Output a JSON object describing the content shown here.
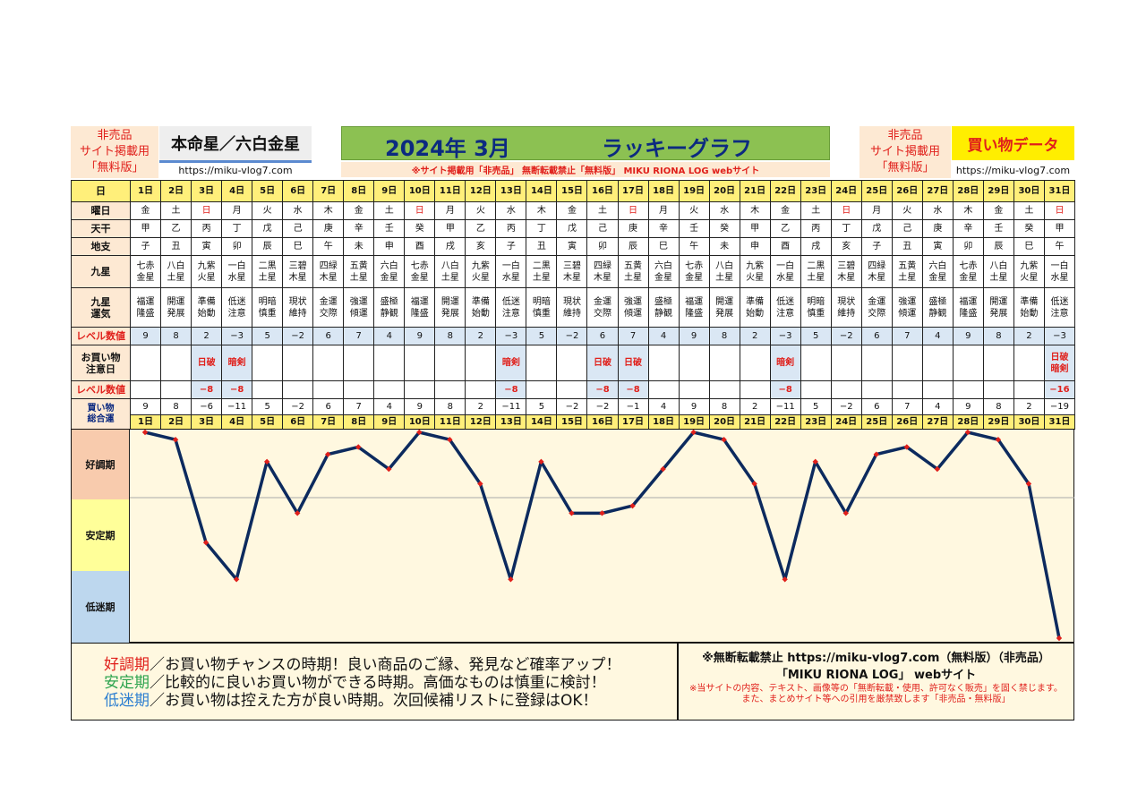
{
  "header": {
    "notice_left": [
      "非売品",
      "サイト掲載用",
      "「無料版」"
    ],
    "title": "本命星／六白金星",
    "url": "https://miku-vlog7.com",
    "banner_date": "2024年 3月",
    "banner_title": "ラッキーグラフ",
    "strip_text": "※サイト掲載用「非売品」 無断転載禁止「無料版」 MIKU RIONA LOG webサイト",
    "notice_right": [
      "非売品",
      "サイト掲載用",
      "「無料版」"
    ],
    "shop_label": "買い物データ",
    "url_right": "https://miku-vlog7.com"
  },
  "row_labels": {
    "day": "日",
    "weekday": "曜日",
    "tenkan": "天干",
    "chishi": "地支",
    "kyusei": "九星",
    "unki": [
      "九星",
      "運気"
    ],
    "level": "レベル数値",
    "attention": [
      "お買い物",
      "注意日"
    ],
    "level2": "レベル数値",
    "total": [
      "買い物",
      "総合運"
    ]
  },
  "days": [
    "1日",
    "2日",
    "3日",
    "4日",
    "5日",
    "6日",
    "7日",
    "8日",
    "9日",
    "10日",
    "11日",
    "12日",
    "13日",
    "14日",
    "15日",
    "16日",
    "17日",
    "18日",
    "19日",
    "20日",
    "21日",
    "22日",
    "23日",
    "24日",
    "25日",
    "26日",
    "27日",
    "28日",
    "29日",
    "30日",
    "31日"
  ],
  "weekdays": [
    "金",
    "土",
    "日",
    "月",
    "火",
    "水",
    "木",
    "金",
    "土",
    "日",
    "月",
    "火",
    "水",
    "木",
    "金",
    "土",
    "日",
    "月",
    "火",
    "水",
    "木",
    "金",
    "土",
    "日",
    "月",
    "火",
    "水",
    "木",
    "金",
    "土",
    "日"
  ],
  "tenkan": [
    "甲",
    "乙",
    "丙",
    "丁",
    "戊",
    "己",
    "庚",
    "辛",
    "壬",
    "癸",
    "甲",
    "乙",
    "丙",
    "丁",
    "戊",
    "己",
    "庚",
    "辛",
    "壬",
    "癸",
    "甲",
    "乙",
    "丙",
    "丁",
    "戊",
    "己",
    "庚",
    "辛",
    "壬",
    "癸",
    "甲"
  ],
  "chishi": [
    "子",
    "丑",
    "寅",
    "卯",
    "辰",
    "巳",
    "午",
    "未",
    "申",
    "酉",
    "戌",
    "亥",
    "子",
    "丑",
    "寅",
    "卯",
    "辰",
    "巳",
    "午",
    "未",
    "申",
    "酉",
    "戌",
    "亥",
    "子",
    "丑",
    "寅",
    "卯",
    "辰",
    "巳",
    "午"
  ],
  "kyusei": [
    [
      "七赤",
      "金星"
    ],
    [
      "八白",
      "土星"
    ],
    [
      "九紫",
      "火星"
    ],
    [
      "一白",
      "水星"
    ],
    [
      "二黒",
      "土星"
    ],
    [
      "三碧",
      "木星"
    ],
    [
      "四緑",
      "木星"
    ],
    [
      "五黄",
      "土星"
    ],
    [
      "六白",
      "金星"
    ],
    [
      "七赤",
      "金星"
    ],
    [
      "八白",
      "土星"
    ],
    [
      "九紫",
      "火星"
    ],
    [
      "一白",
      "水星"
    ],
    [
      "二黒",
      "土星"
    ],
    [
      "三碧",
      "木星"
    ],
    [
      "四緑",
      "木星"
    ],
    [
      "五黄",
      "土星"
    ],
    [
      "六白",
      "金星"
    ],
    [
      "七赤",
      "金星"
    ],
    [
      "八白",
      "土星"
    ],
    [
      "九紫",
      "火星"
    ],
    [
      "一白",
      "水星"
    ],
    [
      "二黒",
      "土星"
    ],
    [
      "三碧",
      "木星"
    ],
    [
      "四緑",
      "木星"
    ],
    [
      "五黄",
      "土星"
    ],
    [
      "六白",
      "金星"
    ],
    [
      "七赤",
      "金星"
    ],
    [
      "八白",
      "土星"
    ],
    [
      "九紫",
      "火星"
    ],
    [
      "一白",
      "水星"
    ]
  ],
  "unki": [
    [
      "福運",
      "隆盛"
    ],
    [
      "開運",
      "発展"
    ],
    [
      "準備",
      "始動"
    ],
    [
      "低迷",
      "注意"
    ],
    [
      "明暗",
      "慎重"
    ],
    [
      "現状",
      "維持"
    ],
    [
      "金運",
      "交際"
    ],
    [
      "強運",
      "傾運"
    ],
    [
      "盛極",
      "静観"
    ],
    [
      "福運",
      "隆盛"
    ],
    [
      "開運",
      "発展"
    ],
    [
      "準備",
      "始動"
    ],
    [
      "低迷",
      "注意"
    ],
    [
      "明暗",
      "慎重"
    ],
    [
      "現状",
      "維持"
    ],
    [
      "金運",
      "交際"
    ],
    [
      "強運",
      "傾運"
    ],
    [
      "盛極",
      "静観"
    ],
    [
      "福運",
      "隆盛"
    ],
    [
      "開運",
      "発展"
    ],
    [
      "準備",
      "始動"
    ],
    [
      "低迷",
      "注意"
    ],
    [
      "明暗",
      "慎重"
    ],
    [
      "現状",
      "維持"
    ],
    [
      "金運",
      "交際"
    ],
    [
      "強運",
      "傾運"
    ],
    [
      "盛極",
      "静観"
    ],
    [
      "福運",
      "隆盛"
    ],
    [
      "開運",
      "発展"
    ],
    [
      "準備",
      "始動"
    ],
    [
      "低迷",
      "注意"
    ]
  ],
  "level": [
    "9",
    "8",
    "2",
    "−3",
    "5",
    "−2",
    "6",
    "7",
    "4",
    "9",
    "8",
    "2",
    "−3",
    "5",
    "−2",
    "6",
    "7",
    "4",
    "9",
    "8",
    "2",
    "−3",
    "5",
    "−2",
    "6",
    "7",
    "4",
    "9",
    "8",
    "2",
    "−3"
  ],
  "attention": [
    [
      ""
    ],
    [
      ""
    ],
    [
      "日破"
    ],
    [
      "暗剣"
    ],
    [
      ""
    ],
    [
      ""
    ],
    [
      ""
    ],
    [
      ""
    ],
    [
      ""
    ],
    [
      ""
    ],
    [
      ""
    ],
    [
      ""
    ],
    [
      "暗剣"
    ],
    [
      ""
    ],
    [
      ""
    ],
    [
      "日破"
    ],
    [
      "日破"
    ],
    [
      ""
    ],
    [
      ""
    ],
    [
      ""
    ],
    [
      ""
    ],
    [
      "暗剣"
    ],
    [
      ""
    ],
    [
      ""
    ],
    [
      ""
    ],
    [
      ""
    ],
    [
      ""
    ],
    [
      ""
    ],
    [
      ""
    ],
    [
      ""
    ],
    [
      "日破",
      "暗剣"
    ]
  ],
  "level2": [
    "",
    "",
    "−8",
    "−8",
    "",
    "",
    "",
    "",
    "",
    "",
    "",
    "",
    "−8",
    "",
    "",
    "−8",
    "−8",
    "",
    "",
    "",
    "",
    "−8",
    "",
    "",
    "",
    "",
    "",
    "",
    "",
    "",
    "−16"
  ],
  "total": [
    "9",
    "8",
    "−6",
    "−11",
    "5",
    "−2",
    "6",
    "7",
    "4",
    "9",
    "8",
    "2",
    "−11",
    "5",
    "−2",
    "−2",
    "−1",
    "4",
    "9",
    "8",
    "2",
    "−11",
    "5",
    "−2",
    "6",
    "7",
    "4",
    "9",
    "8",
    "2",
    "−19"
  ],
  "zones": [
    "好調期",
    "安定期",
    "低迷期"
  ],
  "colors": {
    "good_zone": "#f8cbad",
    "stable_zone": "#ffff99",
    "low_zone": "#bdd7ee",
    "line": "#0c2a5e",
    "marker": "#e0201b",
    "sunday": "#e0201b"
  },
  "chart_data": {
    "type": "line",
    "x": [
      "1日",
      "2日",
      "3日",
      "4日",
      "5日",
      "6日",
      "7日",
      "8日",
      "9日",
      "10日",
      "11日",
      "12日",
      "13日",
      "14日",
      "15日",
      "16日",
      "17日",
      "18日",
      "19日",
      "20日",
      "21日",
      "22日",
      "23日",
      "24日",
      "25日",
      "26日",
      "27日",
      "28日",
      "29日",
      "30日",
      "31日"
    ],
    "series": [
      {
        "values": [
          9,
          8,
          -6,
          -11,
          5,
          -2,
          6,
          7,
          4,
          9,
          8,
          2,
          -11,
          5,
          -2,
          -2,
          -1,
          4,
          9,
          8,
          2,
          -11,
          5,
          -2,
          6,
          7,
          4,
          9,
          8,
          2,
          -19
        ]
      }
    ],
    "ylim": [
      -19,
      9
    ],
    "grid": false
  },
  "footer": {
    "lines": [
      {
        "term": "好調期",
        "text": "／お買い物チャンスの時期！良い商品のご縁、発見など確率アップ！"
      },
      {
        "term": "安定期",
        "text": "／比較的に良いお買い物ができる時期。高価なものは慎重に検討！"
      },
      {
        "term": "低迷期",
        "text": "／お買い物は控えた方が良い時期。次回候補リストに登録はOK！"
      }
    ],
    "right_title": "※無断転載禁止 https://miku-vlog7.com（無料版）（非売品）",
    "right_subtitle": "「MIKU RIONA LOG」 webサイト",
    "right_note1": "※当サイトの内容、テキスト、画像等の「無断転載・使用、許可なく販売」を固く禁じます。",
    "right_note2": "また、まとめサイト等への引用を厳禁致します「非売品・無料版」"
  }
}
